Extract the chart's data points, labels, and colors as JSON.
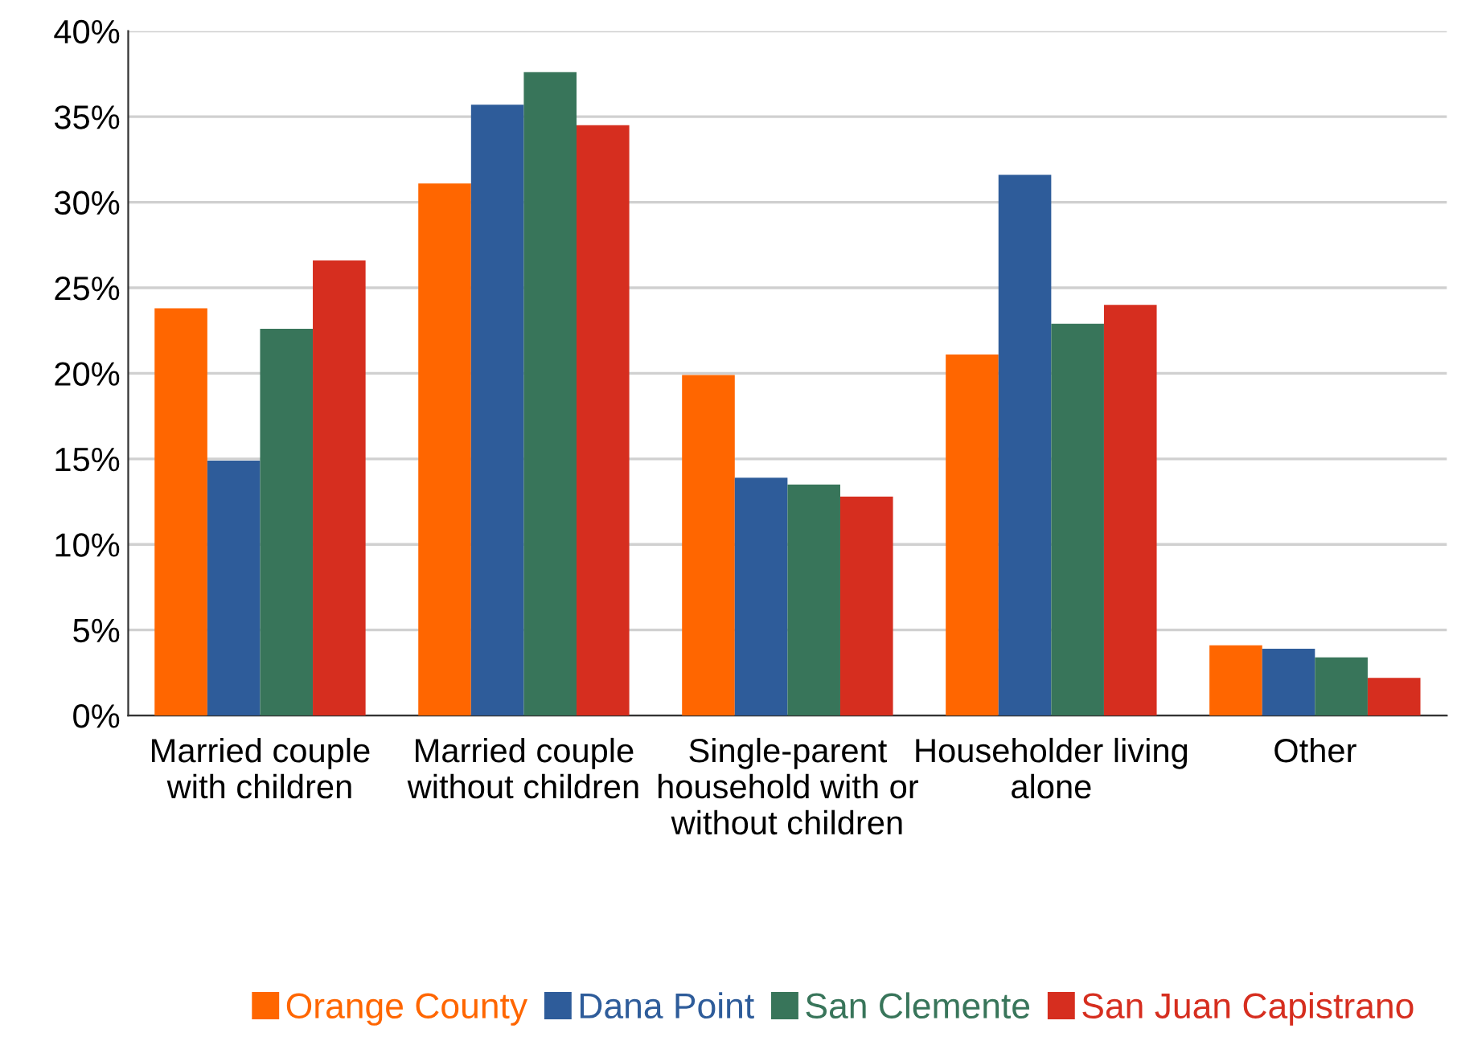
{
  "chart_data": {
    "type": "bar",
    "categories": [
      "Married couple\nwith children",
      "Married couple\nwithout children",
      "Single-parent\nhousehold with or\nwithout children",
      "Householder living\nalone",
      "Other"
    ],
    "series": [
      {
        "name": "Orange County",
        "color": "#ff6600",
        "values": [
          23.8,
          31.1,
          19.9,
          21.1,
          4.1
        ]
      },
      {
        "name": "Dana Point",
        "color": "#2e5c9a",
        "values": [
          14.9,
          35.7,
          13.9,
          31.6,
          3.9
        ]
      },
      {
        "name": "San Clemente",
        "color": "#38755a",
        "values": [
          22.6,
          37.6,
          13.5,
          22.9,
          3.4
        ]
      },
      {
        "name": "San Juan Capistrano",
        "color": "#d62e1f",
        "values": [
          26.6,
          34.5,
          12.8,
          24.0,
          2.2
        ]
      }
    ],
    "ylim": [
      0,
      40
    ],
    "yticks": [
      {
        "value": 0,
        "label": "0%"
      },
      {
        "value": 5,
        "label": "5%"
      },
      {
        "value": 10,
        "label": "10%"
      },
      {
        "value": 15,
        "label": "15%"
      },
      {
        "value": 20,
        "label": "20%"
      },
      {
        "value": 25,
        "label": "25%"
      },
      {
        "value": 30,
        "label": "30%"
      },
      {
        "value": 35,
        "label": "35%"
      },
      {
        "value": 40,
        "label": "40%"
      }
    ],
    "grid": "y",
    "legend": "bottom right"
  }
}
